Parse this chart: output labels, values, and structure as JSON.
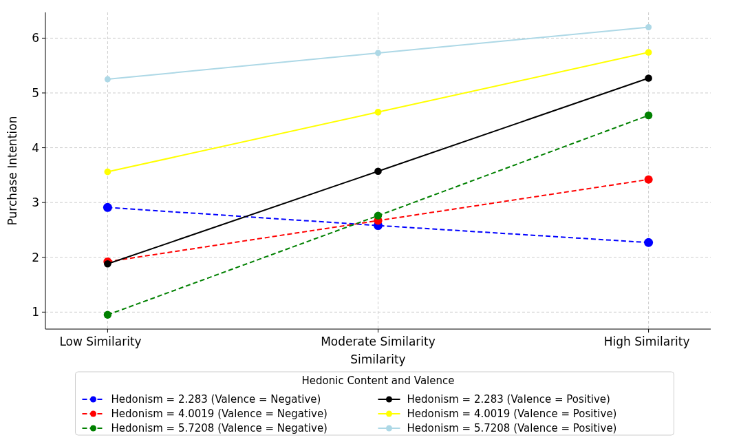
{
  "chart_data": {
    "type": "line",
    "xlabel": "Similarity",
    "ylabel": "Purchase Intention",
    "legend_title": "Hedonic Content and Valence",
    "categories": [
      "Low Similarity",
      "Moderate Similarity",
      "High Similarity"
    ],
    "ylim": [
      0.69,
      6.47
    ],
    "yticks": [
      1,
      2,
      3,
      4,
      5,
      6
    ],
    "grid": true,
    "legend": "bottom",
    "marker": "circle",
    "series": [
      {
        "name": "Hedonism = 2.283 (Valence = Negative)",
        "color": "#0000ff",
        "line_style": "dashed",
        "values": [
          2.91,
          2.58,
          2.27
        ]
      },
      {
        "name": "Hedonism = 4.0019 (Valence = Negative)",
        "color": "#ff0000",
        "line_style": "dashed",
        "values": [
          1.92,
          2.67,
          3.42
        ]
      },
      {
        "name": "Hedonism = 5.7208 (Valence = Negative)",
        "color": "#008000",
        "line_style": "dashed",
        "values": [
          0.95,
          2.76,
          4.59
        ]
      },
      {
        "name": "Hedonism = 2.283 (Valence = Positive)",
        "color": "#000000",
        "line_style": "solid",
        "values": [
          1.88,
          3.57,
          5.27
        ]
      },
      {
        "name": "Hedonism = 4.0019 (Valence = Positive)",
        "color": "#ffff00",
        "line_style": "solid",
        "values": [
          3.56,
          4.65,
          5.74
        ]
      },
      {
        "name": "Hedonism = 5.7208 (Valence = Positive)",
        "color": "#add8e6",
        "line_style": "solid",
        "values": [
          5.25,
          5.73,
          6.2
        ]
      }
    ]
  }
}
